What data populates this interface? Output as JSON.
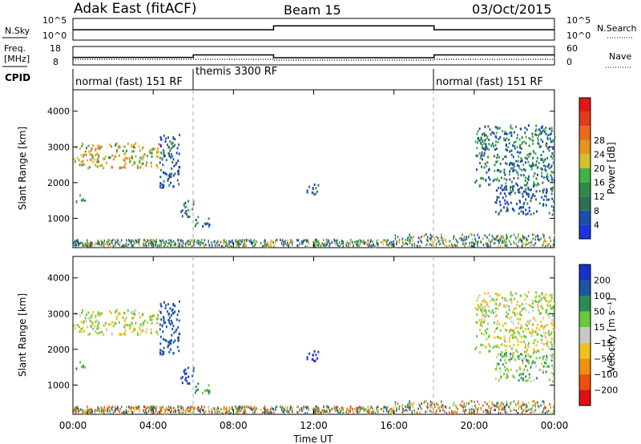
{
  "header": {
    "station": "Adak East (fitACF)",
    "beam": "Beam 15",
    "date": "03/Oct/2015"
  },
  "nsky_panel": {
    "left_label": "N.Sky",
    "right_label": "N.Search",
    "left_tick_top": "10^5",
    "left_tick_bottom": "10^0",
    "right_tick_top": "10^5",
    "right_tick_bottom": "10^0"
  },
  "freq_panel": {
    "left_label_1": "Freq.",
    "left_label_2": "[MHz]",
    "right_label": "Nave",
    "left_tick_top": "18",
    "left_tick_bottom": "8",
    "right_tick_top": "60",
    "right_tick_bottom": "0"
  },
  "cpid": {
    "label": "CPID",
    "segments": [
      {
        "start_hour": 0,
        "text": "normal (fast) 151 RF"
      },
      {
        "start_hour": 6,
        "text": "themis 3300 RF"
      },
      {
        "start_hour": 18,
        "text": "normal (fast) 151 RF"
      }
    ]
  },
  "power_panel": {
    "ylabel": "Slant Range [km]",
    "yticks": [
      "1000",
      "2000",
      "3000",
      "4000"
    ],
    "colorbar_label": "Power [dB]",
    "colorbar_ticks": [
      "4",
      "8",
      "12",
      "16",
      "20",
      "24",
      "28"
    ],
    "colors": [
      "#1b33e0",
      "#1d4fa8",
      "#2f6e57",
      "#2f8a4a",
      "#43b04a",
      "#d6c02a",
      "#e2951f",
      "#e86a1c",
      "#e03a1a",
      "#e01818"
    ]
  },
  "velocity_panel": {
    "ylabel": "Slant Range [km]",
    "yticks": [
      "1000",
      "2000",
      "3000",
      "4000"
    ],
    "colorbar_label": "Velocity [m s⁻¹]",
    "colorbar_ticks": [
      "200",
      "100",
      "50",
      "15",
      "−15",
      "−50",
      "−100",
      "−200"
    ],
    "colors": [
      "#1a2fd0",
      "#1d55a0",
      "#2a8c55",
      "#6ac93a",
      "#c8c8c8",
      "#f0c020",
      "#f09010",
      "#ee5010",
      "#e01010"
    ]
  },
  "x_axis": {
    "ticks": [
      "00:00",
      "04:00",
      "08:00",
      "12:00",
      "16:00",
      "20:00",
      "00:00"
    ],
    "label": "Time UT"
  },
  "chart_data": {
    "type": "heatmap",
    "title": "Adak East (fitACF)  Beam 15  03/Oct/2015",
    "xlabel": "Time UT",
    "ylabel": "Slant Range [km]",
    "xlim_hours": [
      0,
      24
    ],
    "ylim_km": [
      180,
      4600
    ],
    "panels": [
      {
        "name": "Power [dB]",
        "clim": [
          0,
          32
        ]
      },
      {
        "name": "Velocity [m s⁻¹]",
        "clim": [
          -250,
          250
        ]
      }
    ],
    "scatter_regions": [
      {
        "t": [
          0.0,
          4.3
        ],
        "r": [
          2400,
          3100
        ],
        "power_db": 18,
        "velocity": 0
      },
      {
        "t": [
          0.0,
          0.6
        ],
        "r": [
          1450,
          1650
        ],
        "power_db": 8,
        "velocity": 20
      },
      {
        "t": [
          4.3,
          5.3
        ],
        "r": [
          1800,
          3400
        ],
        "power_db": 6,
        "velocity": 120
      },
      {
        "t": [
          5.3,
          6.0
        ],
        "r": [
          1000,
          1500
        ],
        "power_db": 8,
        "velocity": 150
      },
      {
        "t": [
          6.0,
          6.8
        ],
        "r": [
          750,
          1050
        ],
        "power_db": 9,
        "velocity": 40
      },
      {
        "t": [
          11.5,
          12.3
        ],
        "r": [
          1650,
          1950
        ],
        "power_db": 6,
        "velocity": 180
      },
      {
        "t": [
          20.0,
          24.0
        ],
        "r": [
          1900,
          3600
        ],
        "power_db": 9,
        "velocity": 0
      },
      {
        "t": [
          21.0,
          24.0
        ],
        "r": [
          1100,
          1900
        ],
        "power_db": 6,
        "velocity": 20
      }
    ],
    "nsky_hours": [
      0,
      10,
      18,
      24
    ],
    "nsky_levels": [
      300,
      3000,
      300
    ],
    "freq_hours": [
      0,
      6,
      10,
      18,
      24
    ],
    "freq_mhz": [
      12,
      13.5,
      11.8,
      13.5
    ]
  }
}
